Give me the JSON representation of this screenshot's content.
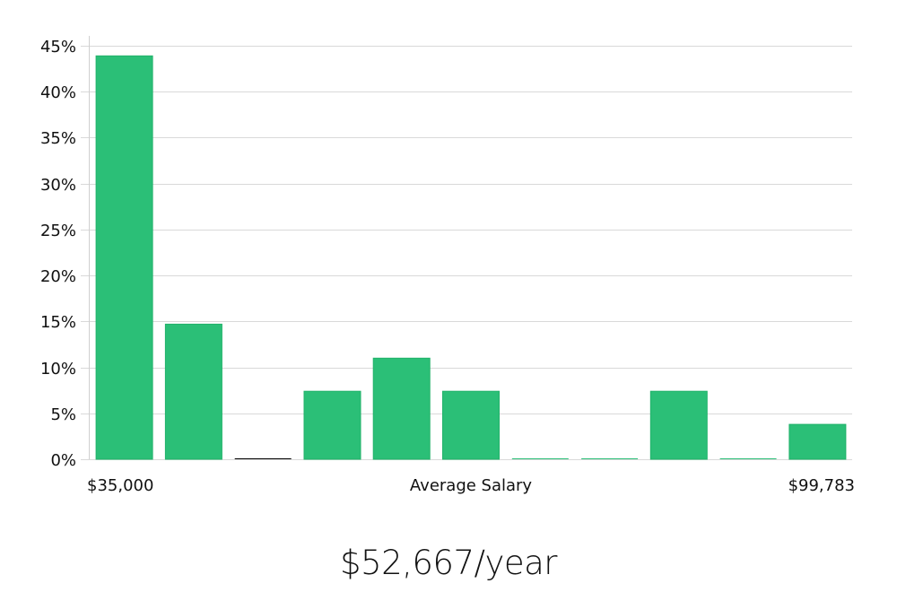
{
  "chart_data": {
    "type": "bar",
    "title": "",
    "xlabel": "Average Salary",
    "ylabel": "",
    "x_min_label": "$35,000",
    "x_max_label": "$99,783",
    "ylim": [
      0,
      45
    ],
    "yticks": [
      0,
      5,
      10,
      15,
      20,
      25,
      30,
      35,
      40,
      45
    ],
    "ytick_labels": [
      "0%",
      "5%",
      "10%",
      "15%",
      "20%",
      "25%",
      "30%",
      "35%",
      "40%",
      "45%"
    ],
    "values": [
      43.9,
      14.7,
      0,
      7.4,
      11.0,
      7.4,
      0,
      0,
      7.4,
      0,
      3.8
    ],
    "bar_color": "#2bbf77",
    "bar_border_color": "#21b26a",
    "zero_bar_color": "#000000",
    "grid": true
  },
  "summary": {
    "salary_text": "$52,667/year"
  }
}
